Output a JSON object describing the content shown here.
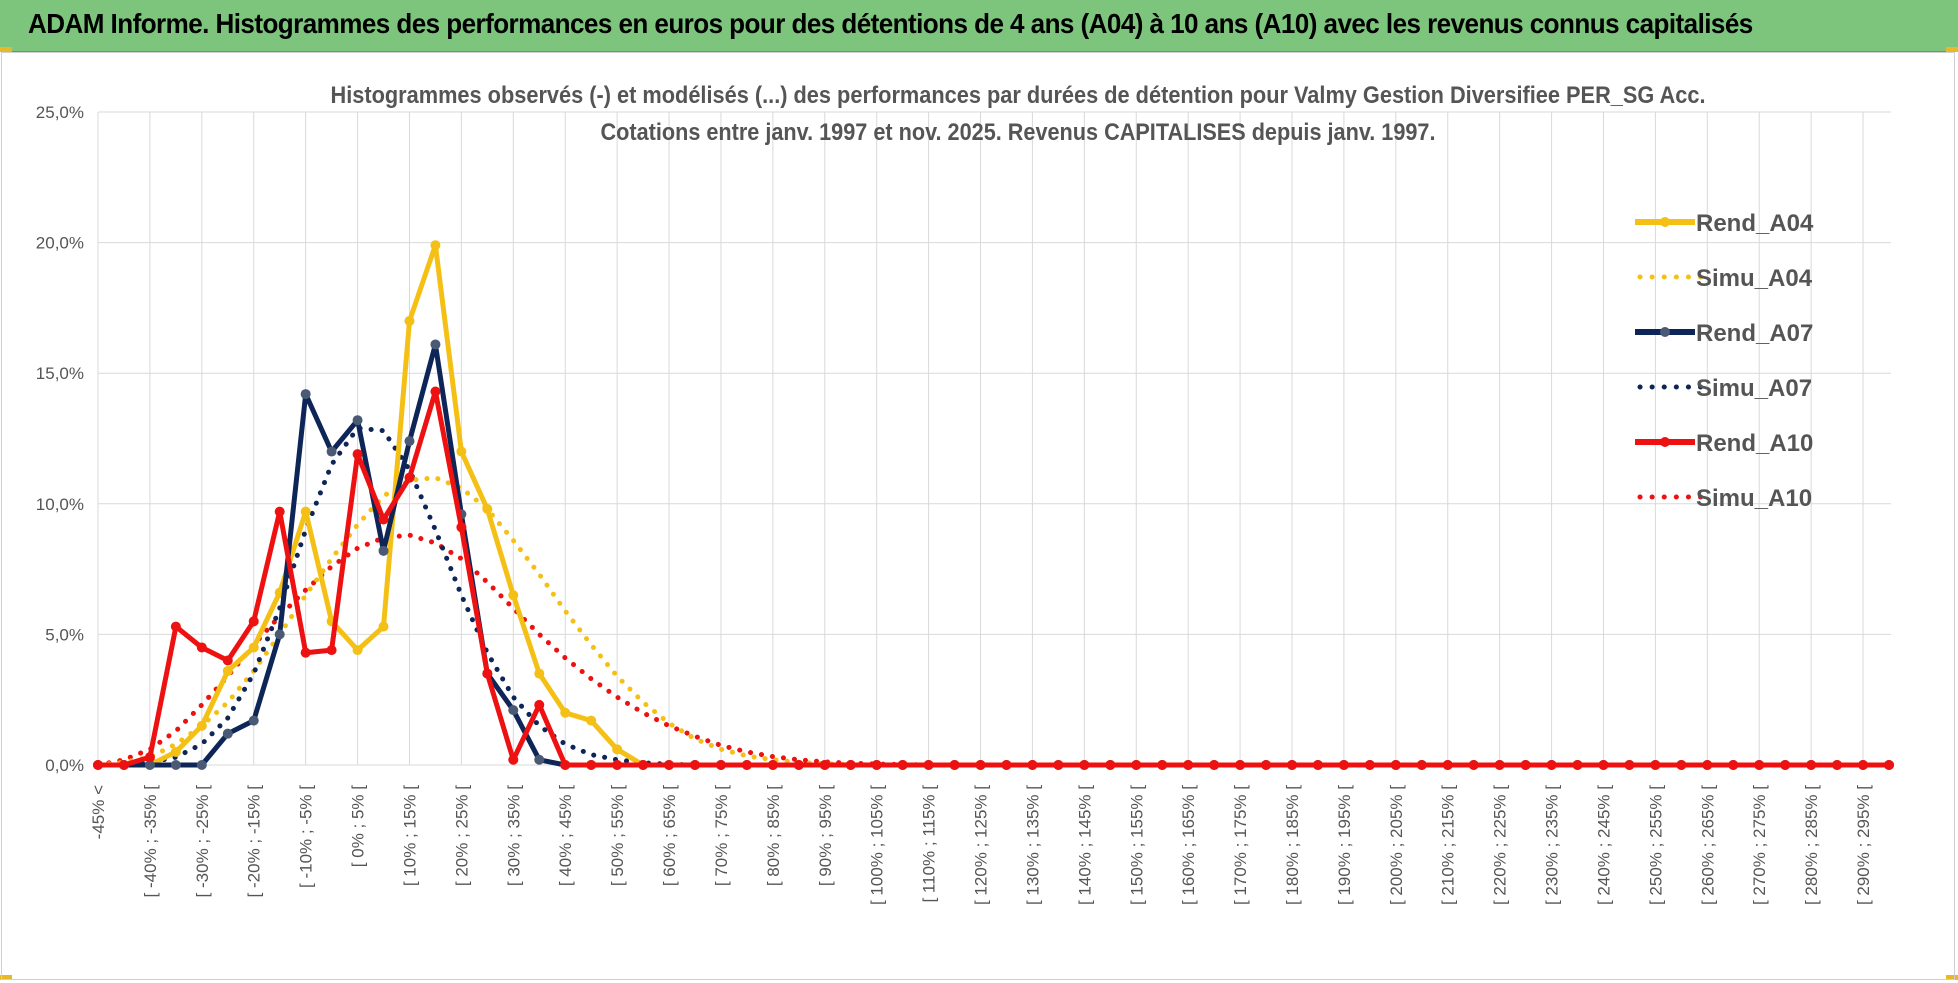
{
  "banner": {
    "title": "ADAM Informe. Histogrammes des performances en euros pour des détentions de 4 ans (A04) à 10 ans (A10) avec les revenus connus capitalisés"
  },
  "colors": {
    "banner_bg": "#7dc57d",
    "A04": "#f5c016",
    "A07": "#0d2557",
    "A10": "#ee1111",
    "A07_marker": "#4a5a75",
    "grid": "#d9d9d9",
    "text": "#555555"
  },
  "chart_data": {
    "type": "line",
    "title": [
      "Histogrammes observés (-) et modélisés (...) des performances par durées de détention pour Valmy Gestion Diversifiee PER_SG Acc.",
      "Cotations entre janv. 1997 et nov. 2025. Revenus CAPITALISES depuis janv. 1997."
    ],
    "xlabel": "",
    "ylabel": "",
    "ylim": [
      0,
      25
    ],
    "y_ticks": [
      "0,0%",
      "5,0%",
      "10,0%",
      "15,0%",
      "20,0%",
      "25,0%"
    ],
    "x_tick_labels": [
      "-45% <",
      "[ -40% ; -35% [",
      "[ -30% ; -25% [",
      "[ -20% ; -15% [",
      "[ -10% ; -5% [",
      "[ 0% ; 5% [",
      "[ 10% ; 15% [",
      "[ 20% ; 25% [",
      "[ 30% ; 35% [",
      "[ 40% ; 45% [",
      "[ 50% ; 55% [",
      "[ 60% ; 65% [",
      "[ 70% ; 75% [",
      "[ 80% ; 85% [",
      "[ 90% ; 95% [",
      "[ 100% ; 105% [",
      "[ 110% ; 115% [",
      "[ 120% ; 125% [",
      "[ 130% ; 135% [",
      "[ 140% ; 145% [",
      "[ 150% ; 155% [",
      "[ 160% ; 165% [",
      "[ 170% ; 175% [",
      "[ 180% ; 185% [",
      "[ 190% ; 195% [",
      "[ 200% ; 205% [",
      "[ 210% ; 215% [",
      "[ 220% ; 225% [",
      "[ 230% ; 235% [",
      "[ 240% ; 245% [",
      "[ 250% ; 255% [",
      "[ 260% ; 265% [",
      "[ 270% ; 275% [",
      "[ 280% ; 285% [",
      "[ 290% ; 295% ["
    ],
    "grid": true,
    "legend_position": "right",
    "series": [
      {
        "name": "Rend_A04",
        "style": "solid",
        "color": "#f5c016",
        "values_head": [
          0,
          0,
          0,
          0.5,
          1.5,
          3.6,
          4.5,
          6.6,
          9.7,
          5.5,
          4.4,
          5.3,
          17.0,
          19.9,
          12.0,
          9.8,
          6.5,
          3.5,
          2.0,
          1.7,
          0.6,
          0,
          0
        ]
      },
      {
        "name": "Simu_A04",
        "style": "dotted",
        "color": "#f5c016",
        "values_head": [
          0,
          0.1,
          0.3,
          0.8,
          1.5,
          2.4,
          3.6,
          5.0,
          6.5,
          7.9,
          9.2,
          10.3,
          10.9,
          11.0,
          10.6,
          9.8,
          8.6,
          7.3,
          5.9,
          4.6,
          3.4,
          2.4,
          1.6,
          1.0,
          0.6,
          0.35,
          0.2,
          0.1,
          0.05,
          0.02,
          0
        ]
      },
      {
        "name": "Rend_A07",
        "style": "solid",
        "color": "#0d2557",
        "values_head": [
          0,
          0,
          0,
          0,
          0,
          1.2,
          1.7,
          5.0,
          14.2,
          12.0,
          13.2,
          8.2,
          12.4,
          16.1,
          9.6,
          3.5,
          2.1,
          0.2,
          0,
          0,
          0
        ]
      },
      {
        "name": "Simu_A07",
        "style": "dotted",
        "color": "#0d2557",
        "values_head": [
          0,
          0,
          0.1,
          0.3,
          0.8,
          1.8,
          3.5,
          6.0,
          9.0,
          11.5,
          12.9,
          12.8,
          11.3,
          9.0,
          6.5,
          4.3,
          2.6,
          1.5,
          0.8,
          0.4,
          0.2,
          0.08,
          0.03,
          0
        ]
      },
      {
        "name": "Rend_A10",
        "style": "solid",
        "color": "#ee1111",
        "values_head": [
          0,
          0,
          0.3,
          5.3,
          4.5,
          4.0,
          5.5,
          9.7,
          4.3,
          4.4,
          11.9,
          9.4,
          11.0,
          14.3,
          9.1,
          3.5,
          0.2,
          2.3,
          0,
          0,
          0
        ]
      },
      {
        "name": "Simu_A10",
        "style": "dotted",
        "color": "#ee1111",
        "values_head": [
          0,
          0.2,
          0.6,
          1.3,
          2.3,
          3.4,
          4.6,
          5.7,
          6.7,
          7.6,
          8.3,
          8.7,
          8.8,
          8.5,
          7.9,
          7.0,
          6.0,
          5.0,
          4.1,
          3.3,
          2.6,
          2.0,
          1.5,
          1.1,
          0.75,
          0.5,
          0.32,
          0.2,
          0.12,
          0.07,
          0.04,
          0.02,
          0
        ]
      }
    ],
    "n_points": 70,
    "note_values": "values after values_head are 0"
  }
}
